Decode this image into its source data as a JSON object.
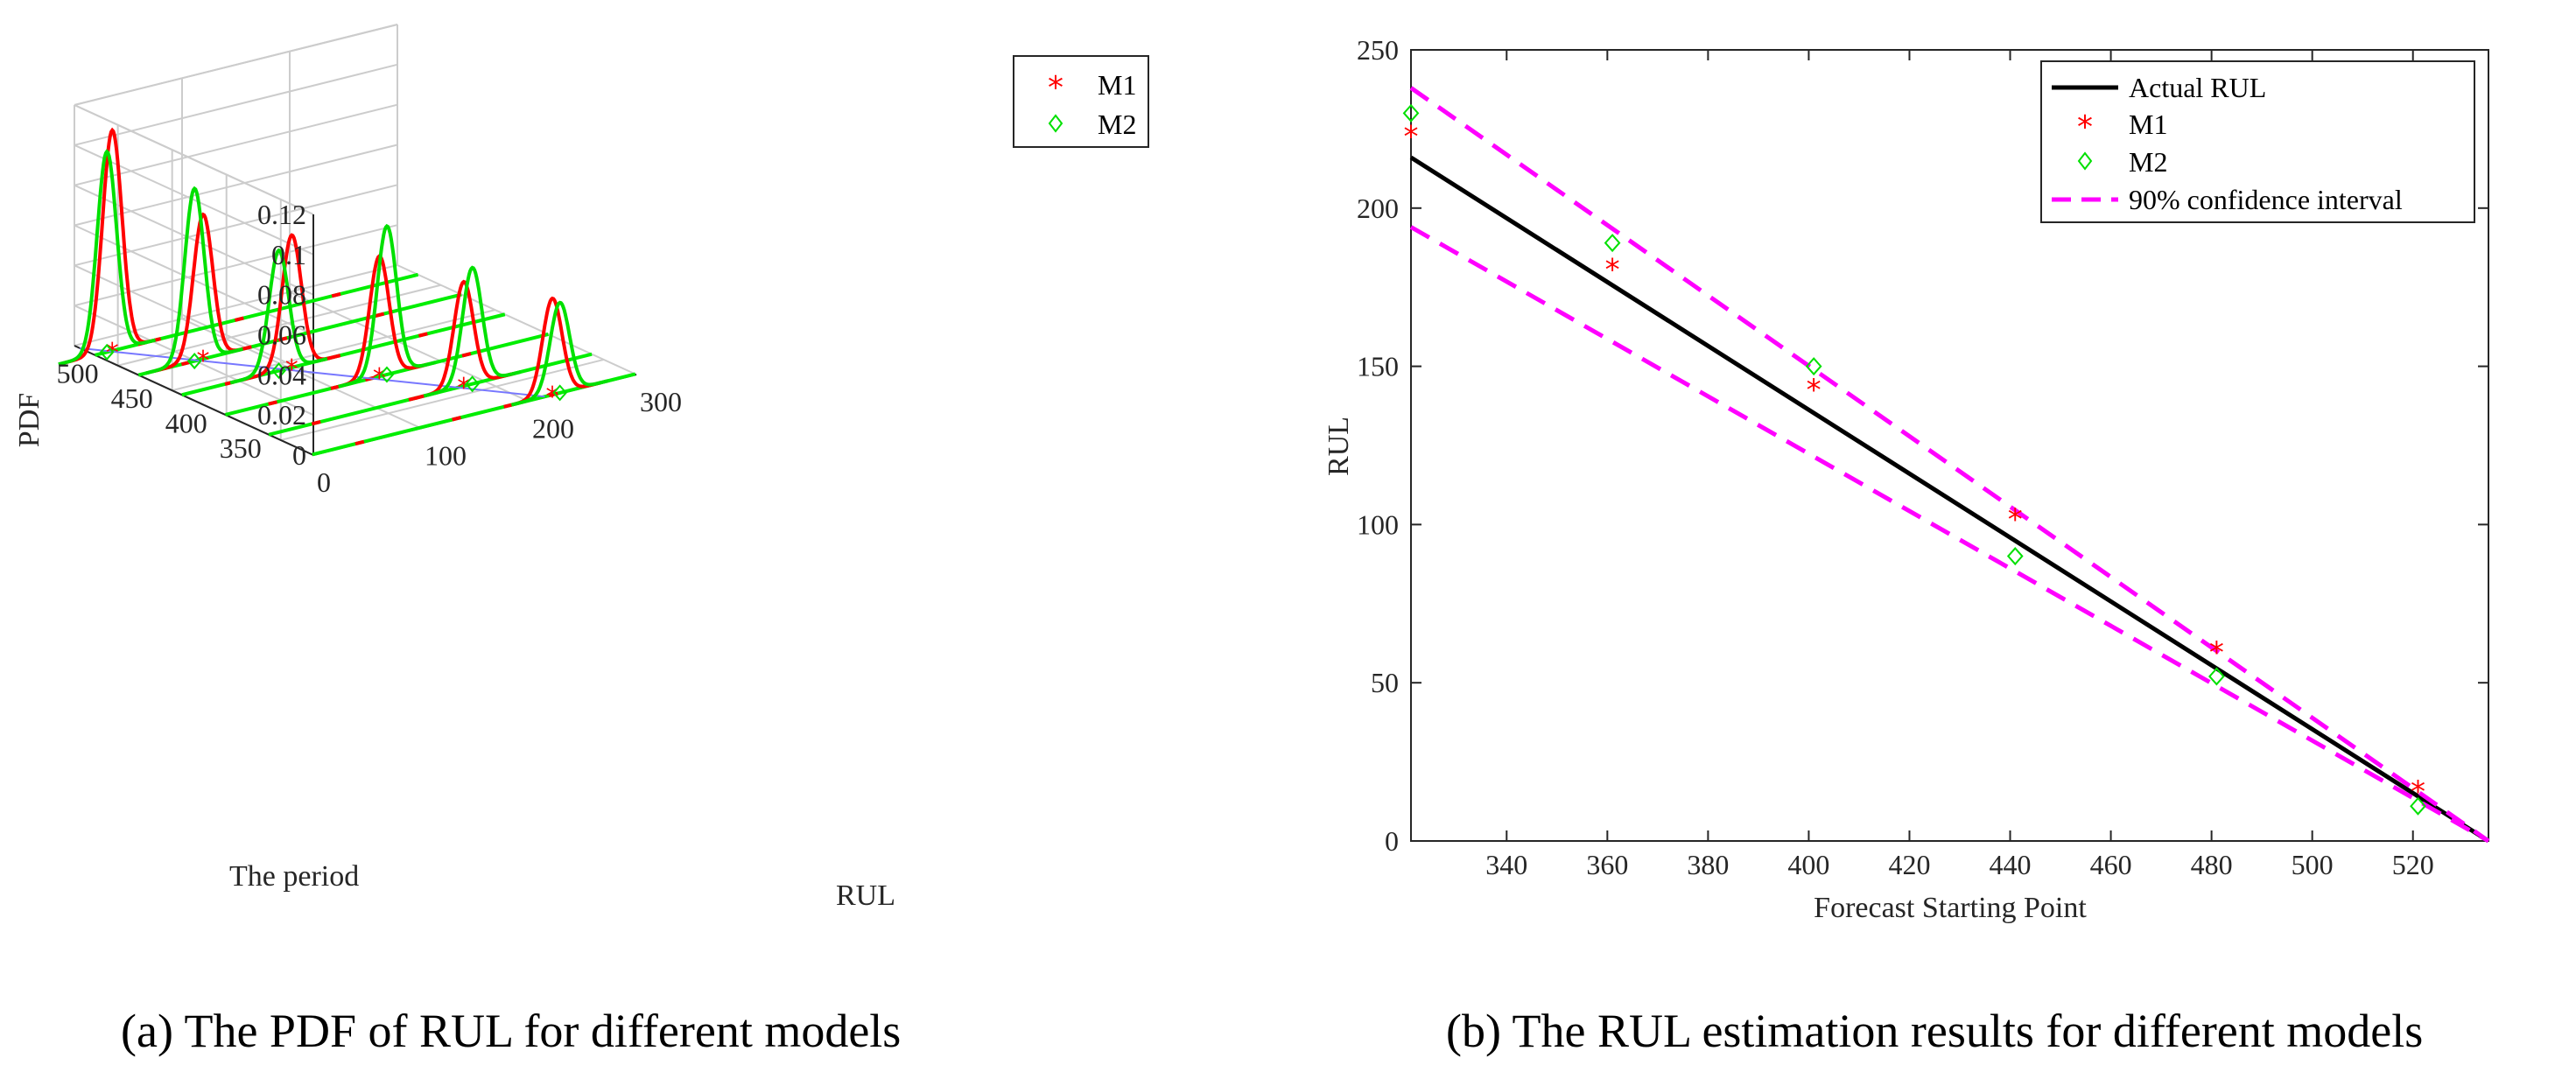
{
  "chart_data": [
    {
      "type": "line",
      "title": "",
      "caption": "(a) The PDF of RUL for different models",
      "xlabel": "RUL",
      "ylabel": "The period",
      "zlabel": "PDF",
      "xlim": [
        0,
        300
      ],
      "ylim": [
        320,
        540
      ],
      "zlim": [
        0,
        0.12
      ],
      "x_ticks": [
        "0",
        "100",
        "200",
        "300"
      ],
      "y_ticks": [
        "350",
        "400",
        "450",
        "500"
      ],
      "z_ticks": [
        "0",
        "0.02",
        "0.04",
        "0.06",
        "0.08",
        "0.1",
        "0.12"
      ],
      "legend": {
        "position": "top-right",
        "entries": [
          "M1",
          "M2"
        ]
      },
      "colors": {
        "M1": "#ff0000",
        "M2": "#00e000",
        "baseline": "#7777ff",
        "grid": "#cccccc",
        "axis": "#262626"
      },
      "periods": [
        321,
        361,
        401,
        441,
        481,
        521
      ],
      "series": [
        {
          "name": "M1",
          "period": 321,
          "mean": 223,
          "peak": 0.048
        },
        {
          "name": "M2",
          "period": 321,
          "mean": 230,
          "peak": 0.045
        },
        {
          "name": "M1",
          "period": 361,
          "mean": 181,
          "peak": 0.052
        },
        {
          "name": "M2",
          "period": 361,
          "mean": 189,
          "peak": 0.058
        },
        {
          "name": "M1",
          "period": 401,
          "mean": 143,
          "peak": 0.06
        },
        {
          "name": "M2",
          "period": 401,
          "mean": 150,
          "peak": 0.074
        },
        {
          "name": "M1",
          "period": 441,
          "mean": 102,
          "peak": 0.066
        },
        {
          "name": "M2",
          "period": 441,
          "mean": 90,
          "peak": 0.06
        },
        {
          "name": "M1",
          "period": 481,
          "mean": 60,
          "peak": 0.072
        },
        {
          "name": "M2",
          "period": 481,
          "mean": 52,
          "peak": 0.086
        },
        {
          "name": "M1",
          "period": 521,
          "mean": 16,
          "peak": 0.11
        },
        {
          "name": "M2",
          "period": 521,
          "mean": 11,
          "peak": 0.1
        }
      ]
    },
    {
      "type": "line",
      "title": "",
      "caption": "(b) The RUL estimation results for different models",
      "xlabel": "Forecast Starting Point",
      "ylabel": "RUL",
      "xlim": [
        321,
        535
      ],
      "ylim": [
        0,
        250
      ],
      "x_ticks": [
        "340",
        "360",
        "380",
        "400",
        "420",
        "440",
        "460",
        "480",
        "500",
        "520"
      ],
      "y_ticks": [
        "0",
        "50",
        "100",
        "150",
        "200",
        "250"
      ],
      "legend": {
        "position": "top-right",
        "entries": [
          "Actual RUL",
          "M1",
          "M2",
          "90% confidence interval"
        ]
      },
      "colors": {
        "actual": "#000000",
        "M1": "#ff0000",
        "M2": "#00e000",
        "ci": "#ff00ff"
      },
      "series": [
        {
          "name": "Actual RUL",
          "x": [
            321,
            535
          ],
          "y": [
            216,
            0
          ]
        },
        {
          "name": "M1",
          "x": [
            321,
            361,
            401,
            441,
            481,
            521
          ],
          "y": [
            223,
            181,
            143,
            102,
            60,
            16
          ]
        },
        {
          "name": "M2",
          "x": [
            321,
            361,
            401,
            441,
            481,
            521
          ],
          "y": [
            230,
            189,
            150,
            90,
            52,
            11
          ]
        },
        {
          "name": "90% confidence interval",
          "x": [
            321,
            535
          ],
          "y": [
            238,
            0
          ]
        },
        {
          "name": "90% confidence interval lower",
          "x": [
            321,
            535
          ],
          "y": [
            194,
            0
          ]
        }
      ]
    }
  ]
}
